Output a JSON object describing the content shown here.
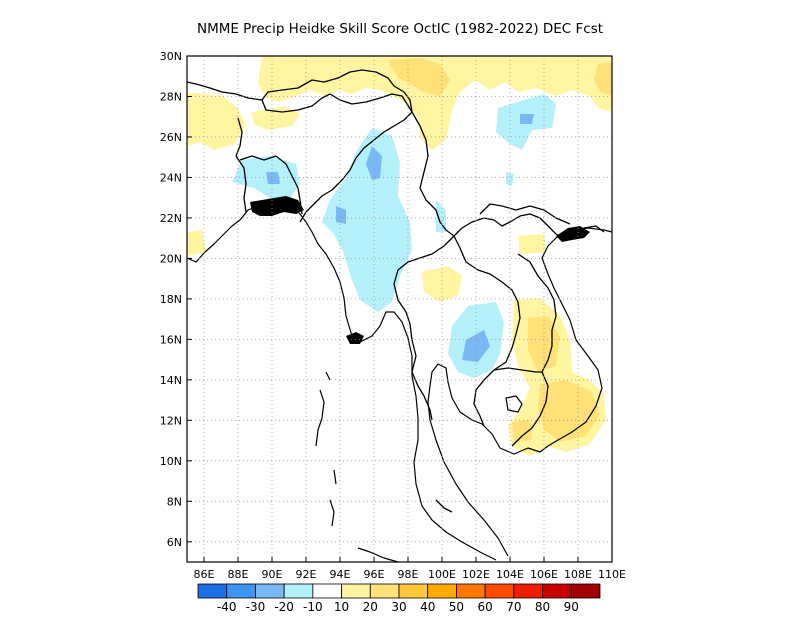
{
  "title": "NMME Precip Heidke Skill Score OctIC (1982-2022) DEC Fcst",
  "map": {
    "lon_range": [
      85,
      110
    ],
    "lat_range": [
      5,
      30
    ],
    "lon_ticks": [
      "86E",
      "88E",
      "90E",
      "92E",
      "94E",
      "96E",
      "98E",
      "100E",
      "102E",
      "104E",
      "106E",
      "108E",
      "110E"
    ],
    "lat_ticks": [
      "6N",
      "8N",
      "10N",
      "12N",
      "14N",
      "16N",
      "18N",
      "20N",
      "22N",
      "24N",
      "26N",
      "28N",
      "30N"
    ],
    "gridlines": "dotted"
  },
  "colorbar": {
    "colors": [
      "#1e6ee6",
      "#3c96f0",
      "#78b9f5",
      "#b4f0fa",
      "#ffffff",
      "#fff5a0",
      "#ffe178",
      "#ffc83c",
      "#ffaa00",
      "#ff7800",
      "#ff4b00",
      "#f01e00",
      "#c80000",
      "#a00000"
    ],
    "labels": [
      "-40",
      "-30",
      "-20",
      "-10",
      "10",
      "20",
      "30",
      "40",
      "50",
      "60",
      "70",
      "80",
      "90"
    ]
  },
  "shading_colors": {
    "light_yellow": "#fff5a0",
    "yellow": "#ffe178",
    "light_cyan": "#b4f0fa",
    "light_blue": "#78b9f5"
  }
}
